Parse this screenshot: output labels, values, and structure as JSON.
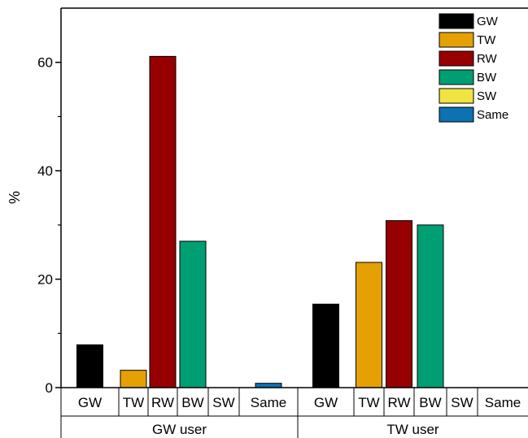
{
  "chart_data": {
    "type": "bar",
    "ylabel": "%",
    "ylim": [
      0,
      70
    ],
    "yticks": [
      0,
      20,
      40,
      60
    ],
    "legend_position": "top-right",
    "categories": [
      "GW",
      "TW",
      "RW",
      "BW",
      "SW",
      "Same"
    ],
    "colors": [
      "#000000",
      "#e5a103",
      "#960000",
      "#009e73",
      "#f0e442",
      "#0c72b2"
    ],
    "groups": [
      {
        "name": "GW user",
        "values": [
          7.9,
          3.2,
          61.1,
          27.0,
          0.0,
          0.8
        ]
      },
      {
        "name": "TW user",
        "values": [
          15.4,
          23.1,
          30.8,
          30.0,
          0.0,
          0.0
        ]
      }
    ]
  }
}
